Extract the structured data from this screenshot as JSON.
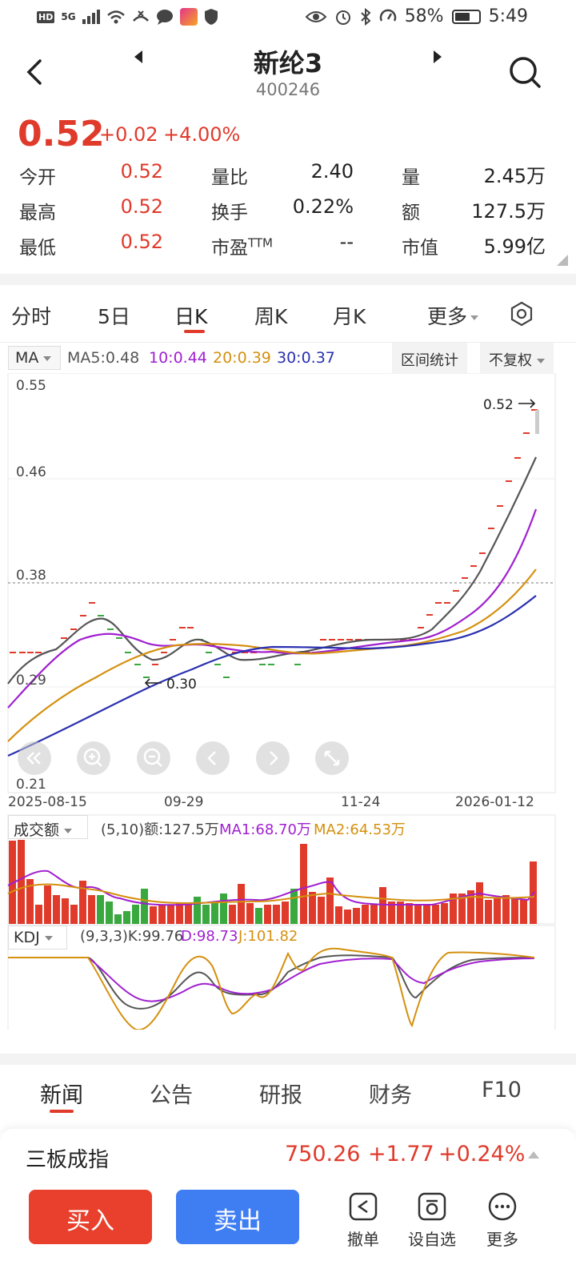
{
  "status_bar": {
    "time": "5:49",
    "battery": "58%",
    "network": "5G"
  },
  "header": {
    "stock_name": "新纶3",
    "stock_code": "400246"
  },
  "quote": {
    "price": "0.52",
    "change": "+0.02",
    "change_pct": "+4.00%",
    "stats": [
      {
        "label": "今开",
        "value": "0.52"
      },
      {
        "label": "量比",
        "value": "2.40"
      },
      {
        "label": "量",
        "value": "2.45万"
      },
      {
        "label": "最高",
        "value": "0.52"
      },
      {
        "label": "换手",
        "value": "0.22%"
      },
      {
        "label": "额",
        "value": "127.5万"
      },
      {
        "label": "最低",
        "value": "0.52"
      },
      {
        "label": "市盈",
        "label_sup": "TTM",
        "value": "--"
      },
      {
        "label": "市值",
        "value": "5.99亿"
      }
    ]
  },
  "period_tabs": [
    "分时",
    "5日",
    "日K",
    "周K",
    "月K",
    "更多"
  ],
  "active_period": "日K",
  "ma_panel": {
    "selector": "MA",
    "ma5": "MA5:0.48",
    "ma10": "10:0.44",
    "ma20": "20:0.39",
    "ma30": "30:0.37",
    "range_stats": "区间统计",
    "adjust": "不复权",
    "y_ticks": [
      "0.55",
      "0.46",
      "0.38",
      "0.29",
      "0.21"
    ],
    "dates": [
      "2025-08-15",
      "09-29",
      "11-24",
      "2026-01-12"
    ],
    "high_marker": "0.52",
    "low_marker": "0.30"
  },
  "turnover_panel": {
    "selector": "成交额",
    "legend": "(5,10)额:127.5万",
    "ma1": "MA1:68.70万",
    "ma2": "MA2:64.53万"
  },
  "kdj_panel": {
    "selector": "KDJ",
    "legend": "(9,3,3)K:99.76",
    "d": "D:98.73",
    "j": "J:101.82"
  },
  "news_tabs": [
    "新闻",
    "公告",
    "研报",
    "财务",
    "F10"
  ],
  "index_bar": {
    "name": "三板成指",
    "value": "750.26",
    "change": "+1.77",
    "change_pct": "+0.24%"
  },
  "bottom_bar": {
    "buy": "买入",
    "sell": "卖出",
    "tools": [
      "撤单",
      "设自选",
      "更多"
    ]
  },
  "colors": {
    "up": "#e03a2b",
    "down": "#39a83e",
    "ma5": "#555555",
    "ma10": "#a020d0",
    "ma20": "#d4900f",
    "ma30": "#2a30b0"
  }
}
